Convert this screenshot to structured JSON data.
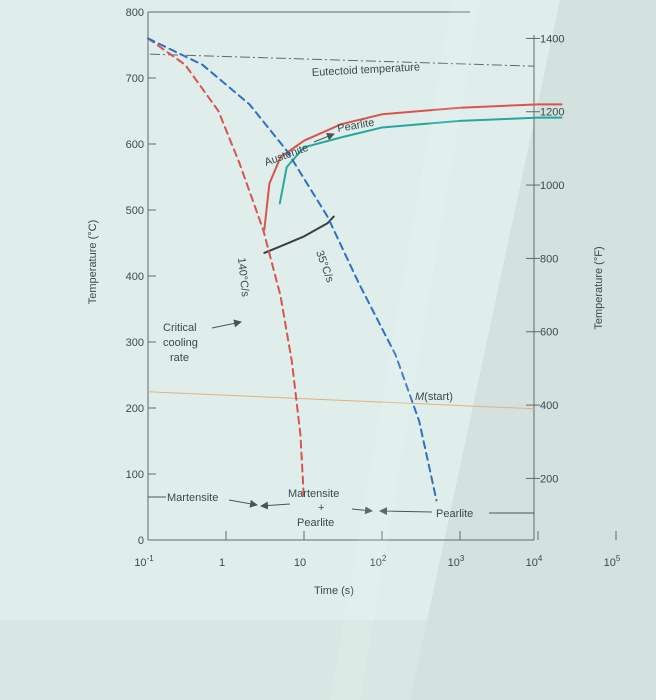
{
  "chart_data": {
    "type": "line",
    "title": "",
    "xlabel": "Time (s)",
    "ylabel_left": "Temperature (°C)",
    "ylabel_right": "Temperature (°F)",
    "x_scale": "log",
    "xlim": [
      0.1,
      100000
    ],
    "ylim": [
      0,
      800
    ],
    "x_ticks": [
      {
        "value": 0.1,
        "base": "10",
        "exp": "-1"
      },
      {
        "value": 1,
        "base": "1",
        "exp": ""
      },
      {
        "value": 10,
        "base": "10",
        "exp": ""
      },
      {
        "value": 100,
        "base": "10",
        "exp": "2"
      },
      {
        "value": 1000,
        "base": "10",
        "exp": "3"
      },
      {
        "value": 10000,
        "base": "10",
        "exp": "4"
      },
      {
        "value": 100000,
        "base": "10",
        "exp": "5"
      }
    ],
    "y_ticks_c": [
      {
        "value": 0,
        "label": "0"
      },
      {
        "value": 100,
        "label": "100"
      },
      {
        "value": 200,
        "label": "200"
      },
      {
        "value": 300,
        "label": "300"
      },
      {
        "value": 400,
        "label": "400"
      },
      {
        "value": 500,
        "label": "500"
      },
      {
        "value": 600,
        "label": "600"
      },
      {
        "value": 700,
        "label": "700"
      },
      {
        "value": 800,
        "label": "800"
      }
    ],
    "y_ticks_f": [
      {
        "value": 200,
        "label": "200"
      },
      {
        "value": 400,
        "label": "400"
      },
      {
        "value": 600,
        "label": "600"
      },
      {
        "value": 800,
        "label": "800"
      },
      {
        "value": 1000,
        "label": "1000"
      },
      {
        "value": 1200,
        "label": "1200"
      },
      {
        "value": 1400,
        "label": "1400"
      }
    ],
    "eutectoid_temperature": 727,
    "ms_temperature": 220,
    "series": [
      {
        "key": "pearlite_start",
        "color": "#d9534f",
        "style": "solid",
        "points": [
          [
            3.1,
            470
          ],
          [
            3.6,
            540
          ],
          [
            5,
            580
          ],
          [
            10,
            605
          ],
          [
            30,
            630
          ],
          [
            100,
            645
          ],
          [
            1000,
            655
          ],
          [
            10000,
            660
          ],
          [
            20000,
            660
          ]
        ]
      },
      {
        "key": "pearlite_finish",
        "color": "#26a6a0",
        "style": "solid",
        "points": [
          [
            4.9,
            510
          ],
          [
            6,
            565
          ],
          [
            10,
            595
          ],
          [
            30,
            610
          ],
          [
            100,
            625
          ],
          [
            1000,
            635
          ],
          [
            10000,
            640
          ],
          [
            20000,
            640
          ]
        ]
      },
      {
        "key": "pearlite_stop",
        "color": "#3a3d45",
        "style": "solid",
        "points": [
          [
            3.1,
            435
          ],
          [
            5,
            445
          ],
          [
            10,
            460
          ],
          [
            20,
            480
          ],
          [
            24,
            490
          ]
        ]
      },
      {
        "key": "cooling_140",
        "color": "#d9534f",
        "style": "dashed",
        "points": [
          [
            0.1,
            760
          ],
          [
            0.3,
            720
          ],
          [
            0.8,
            650
          ],
          [
            1.5,
            570
          ],
          [
            3,
            470
          ],
          [
            5,
            370
          ],
          [
            7,
            270
          ],
          [
            9,
            160
          ],
          [
            10,
            60
          ]
        ]
      },
      {
        "key": "cooling_35",
        "color": "#2f6fc4",
        "style": "dashed",
        "points": [
          [
            0.1,
            760
          ],
          [
            0.5,
            720
          ],
          [
            2,
            660
          ],
          [
            6,
            590
          ],
          [
            20,
            490
          ],
          [
            50,
            390
          ],
          [
            150,
            280
          ],
          [
            300,
            180
          ],
          [
            500,
            60
          ]
        ]
      }
    ],
    "annotations": {
      "eutectoid": "Eutectoid temperature",
      "austenite": "Austenite",
      "pearlite_top": "Pearlite",
      "rate_140": "140°C/s",
      "rate_35": "35°C/s",
      "critical_1": "Critical",
      "critical_2": "cooling",
      "critical_3": "rate",
      "m_start_m": "M",
      "m_start_rest": "(start)",
      "martensite_left": "Martensite",
      "martensite_mid": "Martensite",
      "plus": "+",
      "pearlite_mid": "Pearlite",
      "pearlite_right": "Pearlite"
    }
  }
}
